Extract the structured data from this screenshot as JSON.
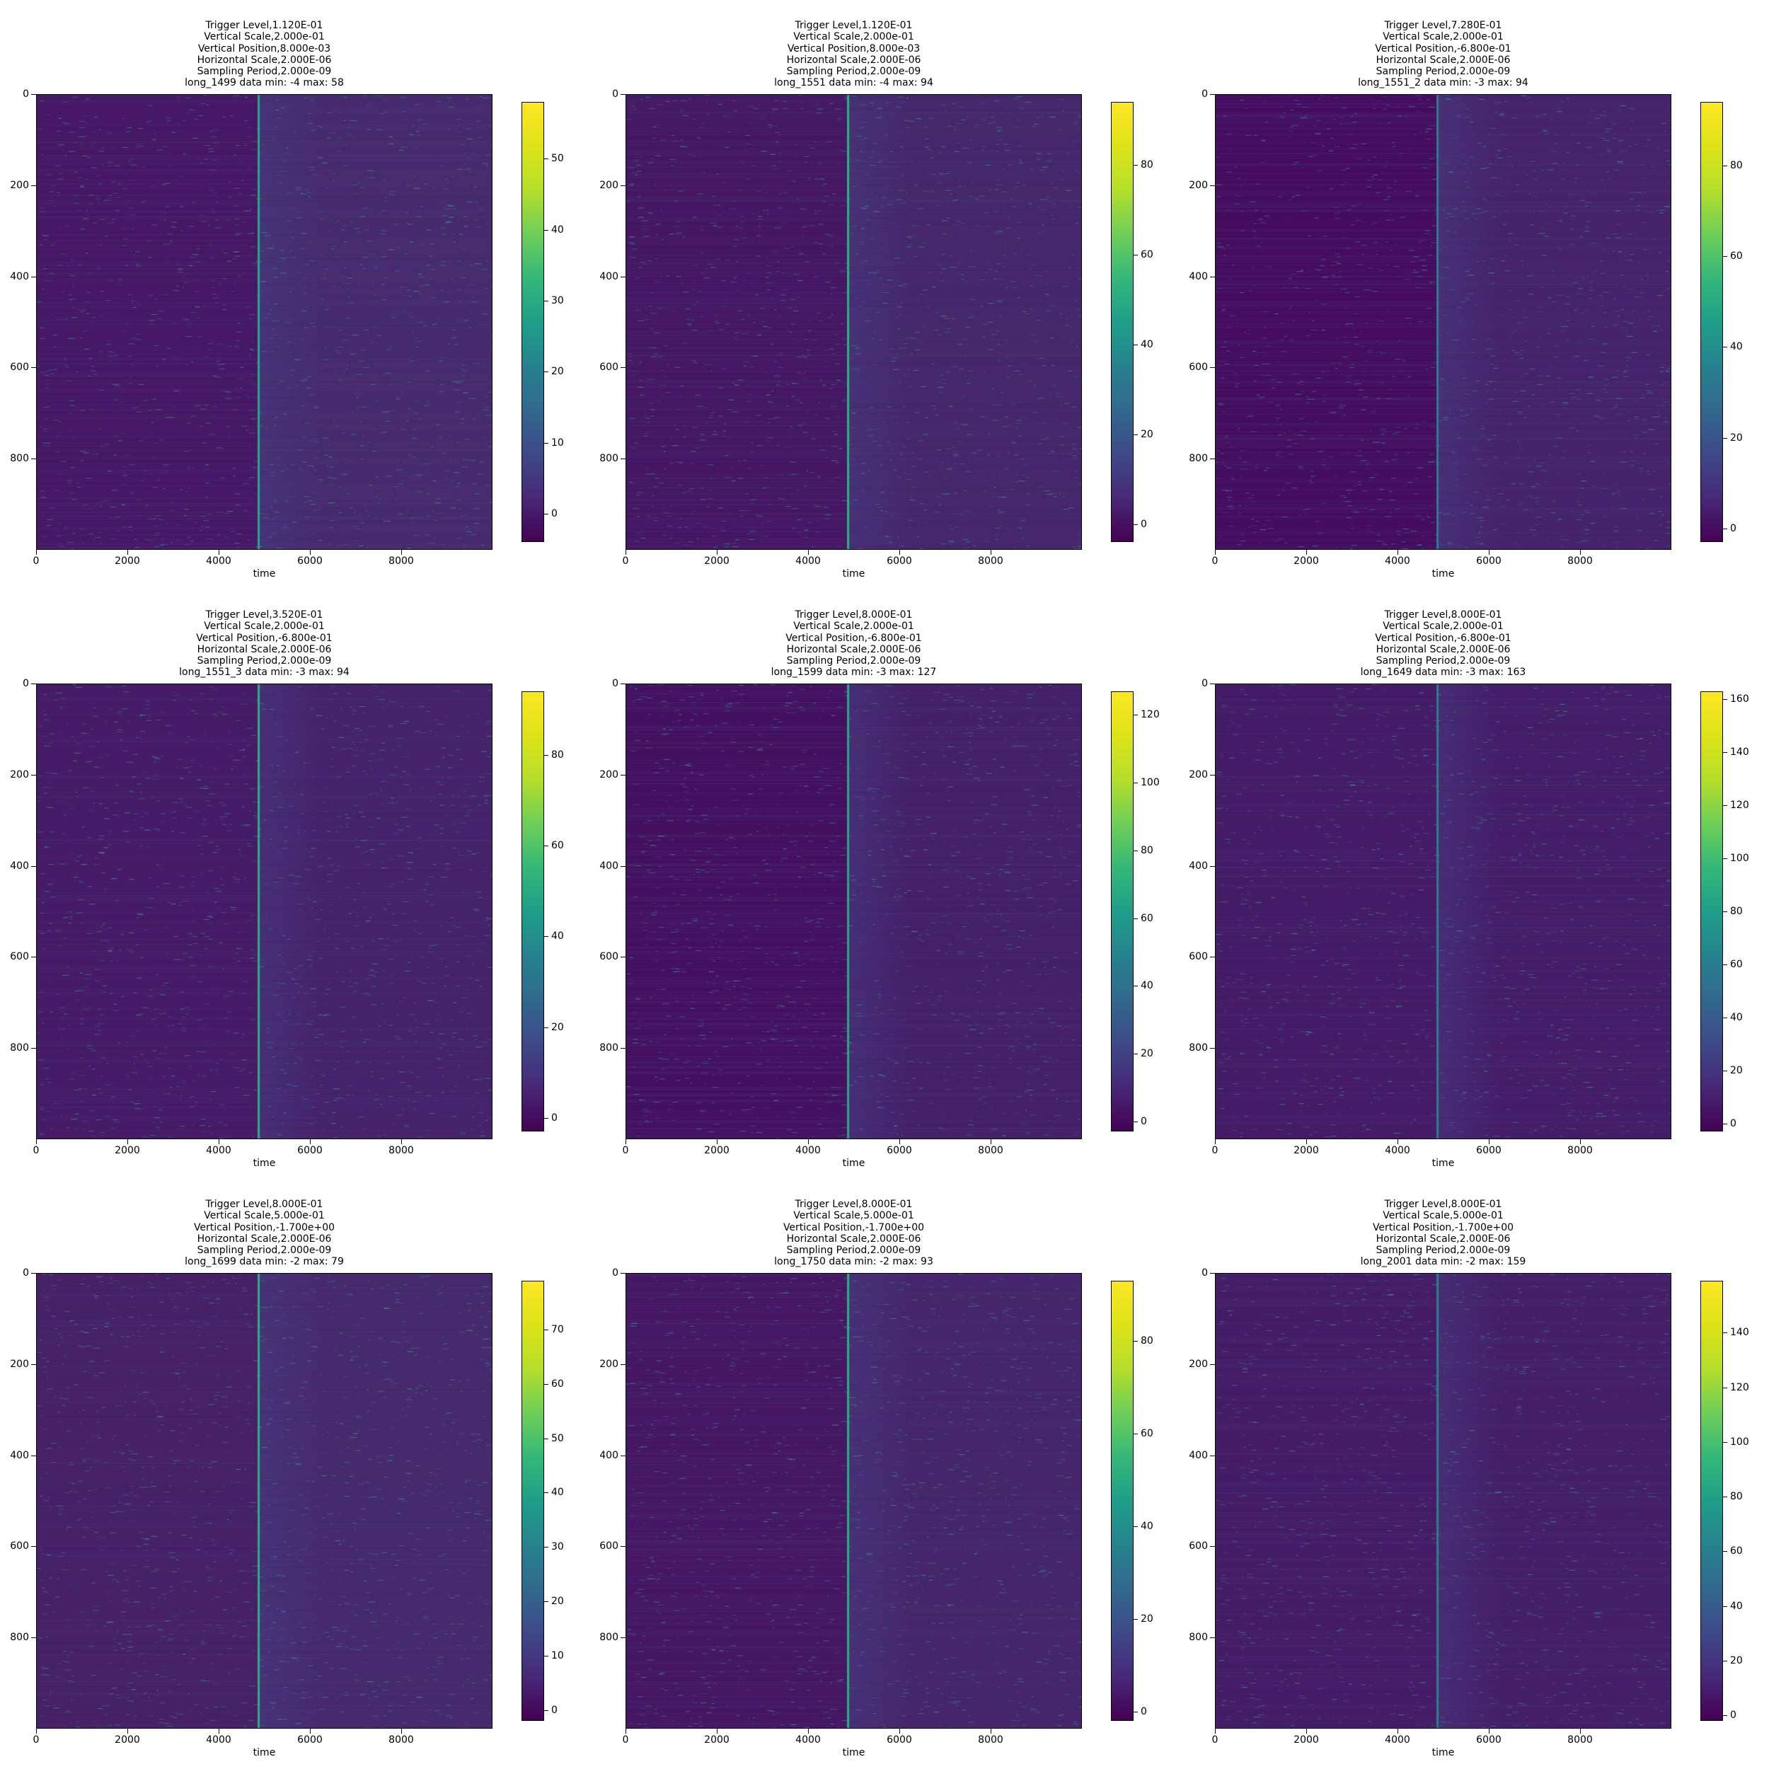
{
  "chart_data": [
    {
      "type": "heatmap",
      "title_lines": [
        "Trigger Level,1.120E-01",
        "Vertical Scale,2.000e-01",
        "Vertical Position,8.000e-03",
        "Horizontal Scale,2.000E-06",
        "Sampling Period,2.000e-09",
        "long_1499 data min: -4 max: 58"
      ],
      "xlabel": "time",
      "xlim": [
        0,
        10000
      ],
      "ylim": [
        1000,
        0
      ],
      "x_ticks": [
        "0",
        "2000",
        "4000",
        "6000",
        "8000"
      ],
      "y_ticks": [
        "0",
        "200",
        "400",
        "600",
        "800"
      ],
      "colorbar": {
        "min": -4,
        "max": 58,
        "ticks": [
          "0",
          "10",
          "20",
          "30",
          "40",
          "50"
        ],
        "colormap": "viridis"
      },
      "trigger_x": 4875,
      "colors": {
        "background": "#472b6e",
        "pre_trigger": "#471765",
        "trigger_line": "#24aa83"
      }
    },
    {
      "type": "heatmap",
      "title_lines": [
        "Trigger Level,1.120E-01",
        "Vertical Scale,2.000e-01",
        "Vertical Position,8.000e-03",
        "Horizontal Scale,2.000E-06",
        "Sampling Period,2.000e-09",
        "long_1551 data min: -4 max: 94"
      ],
      "xlabel": "time",
      "xlim": [
        0,
        10000
      ],
      "ylim": [
        1000,
        0
      ],
      "x_ticks": [
        "0",
        "2000",
        "4000",
        "6000",
        "8000"
      ],
      "y_ticks": [
        "0",
        "200",
        "400",
        "600",
        "800"
      ],
      "colorbar": {
        "min": -4,
        "max": 94,
        "ticks": [
          "0",
          "20",
          "40",
          "60",
          "80"
        ],
        "colormap": "viridis"
      },
      "trigger_x": 4875,
      "colors": {
        "background": "#46276b",
        "pre_trigger": "#461663",
        "trigger_line": "#2db27d"
      }
    },
    {
      "type": "heatmap",
      "title_lines": [
        "Trigger Level,7.280E-01",
        "Vertical Scale,2.000e-01",
        "Vertical Position,-6.800e-01",
        "Horizontal Scale,2.000E-06",
        "Sampling Period,2.000e-09",
        "long_1551_2 data min: -3 max: 94"
      ],
      "xlabel": "time",
      "xlim": [
        0,
        10000
      ],
      "ylim": [
        1000,
        0
      ],
      "x_ticks": [
        "0",
        "2000",
        "4000",
        "6000",
        "8000"
      ],
      "y_ticks": [
        "0",
        "200",
        "400",
        "600",
        "800"
      ],
      "colorbar": {
        "min": -3,
        "max": 94,
        "ticks": [
          "0",
          "20",
          "40",
          "60",
          "80"
        ],
        "colormap": "viridis"
      },
      "trigger_x": 4875,
      "colors": {
        "background": "#46236a",
        "pre_trigger": "#460b5e",
        "trigger_line": "#2f7c8e"
      }
    },
    {
      "type": "heatmap",
      "title_lines": [
        "Trigger Level,3.520E-01",
        "Vertical Scale,2.000e-01",
        "Vertical Position,-6.800e-01",
        "Horizontal Scale,2.000E-06",
        "Sampling Period,2.000e-09",
        "long_1551_3 data min: -3 max: 94"
      ],
      "xlabel": "time",
      "xlim": [
        0,
        10000
      ],
      "ylim": [
        1000,
        0
      ],
      "x_ticks": [
        "0",
        "2000",
        "4000",
        "6000",
        "8000"
      ],
      "y_ticks": [
        "0",
        "200",
        "400",
        "600",
        "800"
      ],
      "colorbar": {
        "min": -3,
        "max": 94,
        "ticks": [
          "0",
          "20",
          "40",
          "60",
          "80"
        ],
        "colormap": "viridis"
      },
      "trigger_x": 4875,
      "colors": {
        "background": "#46226a",
        "pre_trigger": "#461a66",
        "trigger_line": "#2ab07f"
      }
    },
    {
      "type": "heatmap",
      "title_lines": [
        "Trigger Level,8.000E-01",
        "Vertical Scale,2.000e-01",
        "Vertical Position,-6.800e-01",
        "Horizontal Scale,2.000E-06",
        "Sampling Period,2.000e-09",
        "long_1599 data min: -3 max: 127"
      ],
      "xlabel": "time",
      "xlim": [
        0,
        10000
      ],
      "ylim": [
        1000,
        0
      ],
      "x_ticks": [
        "0",
        "2000",
        "4000",
        "6000",
        "8000"
      ],
      "y_ticks": [
        "0",
        "200",
        "400",
        "600",
        "800"
      ],
      "colorbar": {
        "min": -3,
        "max": 127,
        "ticks": [
          "0",
          "20",
          "40",
          "60",
          "80",
          "100",
          "120"
        ],
        "colormap": "viridis"
      },
      "trigger_x": 4875,
      "colors": {
        "background": "#451f68",
        "pre_trigger": "#450f60",
        "trigger_line": "#2fa486"
      }
    },
    {
      "type": "heatmap",
      "title_lines": [
        "Trigger Level,8.000E-01",
        "Vertical Scale,2.000e-01",
        "Vertical Position,-6.800e-01",
        "Horizontal Scale,2.000E-06",
        "Sampling Period,2.000e-09",
        "long_1649 data min: -3 max: 163"
      ],
      "xlabel": "time",
      "xlim": [
        0,
        10000
      ],
      "ylim": [
        1000,
        0
      ],
      "x_ticks": [
        "0",
        "2000",
        "4000",
        "6000",
        "8000"
      ],
      "y_ticks": [
        "0",
        "200",
        "400",
        "600",
        "800"
      ],
      "colorbar": {
        "min": -3,
        "max": 163,
        "ticks": [
          "0",
          "20",
          "40",
          "60",
          "80",
          "100",
          "120",
          "140",
          "160"
        ],
        "colormap": "viridis"
      },
      "trigger_x": 4875,
      "colors": {
        "background": "#451c67",
        "pre_trigger": "#451a66",
        "trigger_line": "#2c7e8d"
      }
    },
    {
      "type": "heatmap",
      "title_lines": [
        "Trigger Level,8.000E-01",
        "Vertical Scale,5.000e-01",
        "Vertical Position,-1.700e+00",
        "Horizontal Scale,2.000E-06",
        "Sampling Period,2.000e-09",
        "long_1699 data min: -2 max: 79"
      ],
      "xlabel": "time",
      "xlim": [
        0,
        10000
      ],
      "ylim": [
        1000,
        0
      ],
      "x_ticks": [
        "0",
        "2000",
        "4000",
        "6000",
        "8000"
      ],
      "y_ticks": [
        "0",
        "200",
        "400",
        "600",
        "800"
      ],
      "colorbar": {
        "min": -2,
        "max": 79,
        "ticks": [
          "0",
          "10",
          "20",
          "30",
          "40",
          "50",
          "60",
          "70"
        ],
        "colormap": "viridis"
      },
      "trigger_x": 4875,
      "colors": {
        "background": "#472a6e",
        "pre_trigger": "#472066",
        "trigger_line": "#2bb07f"
      }
    },
    {
      "type": "heatmap",
      "title_lines": [
        "Trigger Level,8.000E-01",
        "Vertical Scale,5.000e-01",
        "Vertical Position,-1.700e+00",
        "Horizontal Scale,2.000E-06",
        "Sampling Period,2.000e-09",
        "long_1750 data min: -2 max: 93"
      ],
      "xlabel": "time",
      "xlim": [
        0,
        10000
      ],
      "ylim": [
        1000,
        0
      ],
      "x_ticks": [
        "0",
        "2000",
        "4000",
        "6000",
        "8000"
      ],
      "y_ticks": [
        "0",
        "200",
        "400",
        "600",
        "800"
      ],
      "colorbar": {
        "min": -2,
        "max": 93,
        "ticks": [
          "0",
          "20",
          "40",
          "60",
          "80"
        ],
        "colormap": "viridis"
      },
      "trigger_x": 4875,
      "colors": {
        "background": "#46266b",
        "pre_trigger": "#461663",
        "trigger_line": "#2ab07f"
      }
    },
    {
      "type": "heatmap",
      "title_lines": [
        "Trigger Level,8.000E-01",
        "Vertical Scale,5.000e-01",
        "Vertical Position,-1.700e+00",
        "Horizontal Scale,2.000E-06",
        "Sampling Period,2.000e-09",
        "long_2001 data min: -2 max: 159"
      ],
      "xlabel": "time",
      "xlim": [
        0,
        10000
      ],
      "ylim": [
        1000,
        0
      ],
      "x_ticks": [
        "0",
        "2000",
        "4000",
        "6000",
        "8000"
      ],
      "y_ticks": [
        "0",
        "200",
        "400",
        "600",
        "800"
      ],
      "colorbar": {
        "min": -2,
        "max": 159,
        "ticks": [
          "0",
          "20",
          "40",
          "60",
          "80",
          "100",
          "120",
          "140"
        ],
        "colormap": "viridis"
      },
      "trigger_x": 4875,
      "colors": {
        "background": "#451e67",
        "pre_trigger": "#451b66",
        "trigger_line": "#2c7e8d"
      }
    }
  ]
}
